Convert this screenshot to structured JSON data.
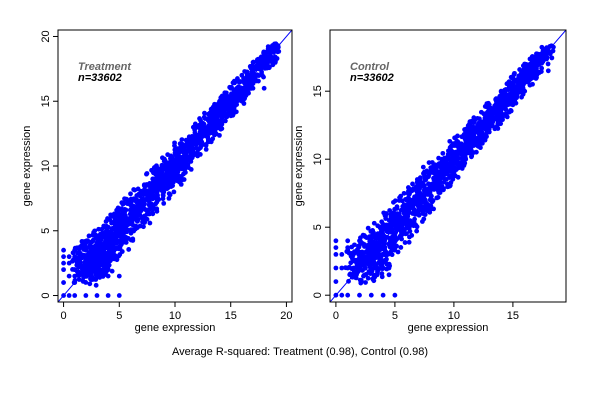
{
  "caption": "Average R-squared: Treatment (0.98), Control (0.98)",
  "chart_data": [
    {
      "type": "scatter",
      "title": "Treatment",
      "annotation": "n=33602",
      "xlabel": "gene expression",
      "ylabel": "gene expression",
      "xlim": [
        -0.5,
        20.5
      ],
      "ylim": [
        -0.5,
        20.5
      ],
      "xticks": [
        0,
        5,
        10,
        15,
        20
      ],
      "yticks": [
        0,
        5,
        10,
        15,
        20
      ],
      "reference_line": "y = x",
      "point_color": "#0000ff",
      "line_color": "#0000ff",
      "series": [
        {
          "x": [
            0,
            0,
            0,
            0,
            0,
            0,
            0.5,
            0.5,
            0.5,
            0.5,
            1,
            1,
            1,
            1,
            1,
            2,
            2,
            2,
            3,
            3,
            3,
            4,
            4,
            4,
            5,
            5,
            1,
            2,
            3,
            4,
            1,
            2,
            3,
            4,
            2.5,
            3.5,
            4.5,
            5.5,
            6,
            6.5,
            7,
            7.5,
            8,
            8.5,
            9,
            9.5,
            10,
            10.5,
            11,
            11.5,
            12,
            12.5,
            13,
            13.5,
            14,
            14.5,
            15,
            15.5,
            16,
            16.5,
            17,
            17.5,
            18,
            18.5,
            19,
            6,
            7,
            8,
            9,
            10,
            11,
            12,
            13,
            14,
            15,
            16,
            17,
            5,
            6,
            7,
            8,
            9,
            10,
            11,
            12,
            13,
            14,
            15,
            16,
            17,
            18
          ],
          "y": [
            0,
            1,
            2,
            3,
            2.5,
            3.5,
            0,
            1.5,
            2.5,
            3,
            0,
            2,
            3,
            3.5,
            1,
            0,
            2,
            3.5,
            0,
            1.5,
            4,
            0,
            2,
            4,
            0,
            1.5,
            2,
            2,
            2,
            2,
            1.5,
            1.5,
            1.5,
            1.5,
            3.5,
            3.5,
            4,
            5.5,
            6,
            6.5,
            7,
            7.5,
            8,
            8.5,
            9,
            9.5,
            10,
            10.5,
            11,
            11.5,
            12,
            12.5,
            13,
            13.5,
            14,
            14.5,
            15,
            15.5,
            16,
            16.5,
            17,
            17.5,
            18,
            18.5,
            18,
            5,
            6,
            7,
            8,
            9,
            10,
            11,
            12,
            13,
            14,
            15,
            16,
            6,
            7,
            8,
            9,
            10,
            11,
            12,
            13,
            14,
            15,
            16,
            17,
            18,
            16
          ]
        }
      ]
    },
    {
      "type": "scatter",
      "title": "Control",
      "annotation": "n=33602",
      "xlabel": "gene expression",
      "ylabel": "gene expression",
      "xlim": [
        -0.5,
        19.5
      ],
      "ylim": [
        -0.5,
        19.5
      ],
      "xticks": [
        0,
        5,
        10,
        15
      ],
      "yticks": [
        0,
        5,
        10,
        15
      ],
      "reference_line": "y = x",
      "point_color": "#0000ff",
      "line_color": "#0000ff",
      "series": [
        {
          "x": [
            0,
            0,
            0,
            0,
            0,
            0,
            0.5,
            0.5,
            0.5,
            1,
            1,
            1,
            1,
            2,
            2,
            2,
            3,
            3,
            3,
            4,
            4,
            5,
            1.5,
            2.5,
            3.5,
            4.5,
            1.5,
            2.5,
            3.5,
            4.5,
            2,
            3,
            4,
            5,
            5.5,
            6,
            6.5,
            7,
            7.5,
            8,
            8.5,
            9,
            9.5,
            10,
            10.5,
            11,
            11.5,
            12,
            12.5,
            13,
            13.5,
            14,
            14.5,
            15,
            15.5,
            16,
            16.5,
            17,
            17.5,
            18,
            5,
            6,
            7,
            8,
            9,
            10,
            11,
            12,
            13,
            14,
            15,
            16,
            6,
            7,
            8,
            9,
            10,
            11,
            12,
            13,
            14,
            15,
            16,
            17,
            18
          ],
          "y": [
            0,
            1,
            2,
            3,
            3.5,
            4,
            0,
            2,
            3,
            0,
            2,
            3.5,
            4,
            0,
            2,
            4,
            0,
            2,
            4,
            0,
            2,
            0,
            1.5,
            1.5,
            1.5,
            1.5,
            2,
            2,
            2,
            2,
            3,
            3.5,
            4,
            4.5,
            5.5,
            6,
            6.5,
            7,
            7.5,
            8,
            8.5,
            9,
            9.5,
            10,
            10.5,
            11,
            11.5,
            12,
            12.5,
            13,
            13.5,
            14,
            14.5,
            15,
            15.5,
            16,
            16.5,
            17,
            17.5,
            18,
            6,
            7,
            8,
            9,
            10,
            11,
            12,
            13,
            14,
            15,
            16,
            17,
            5,
            6,
            7,
            8,
            9,
            10,
            11,
            12,
            13,
            14,
            15,
            16,
            16.5
          ]
        }
      ]
    }
  ]
}
